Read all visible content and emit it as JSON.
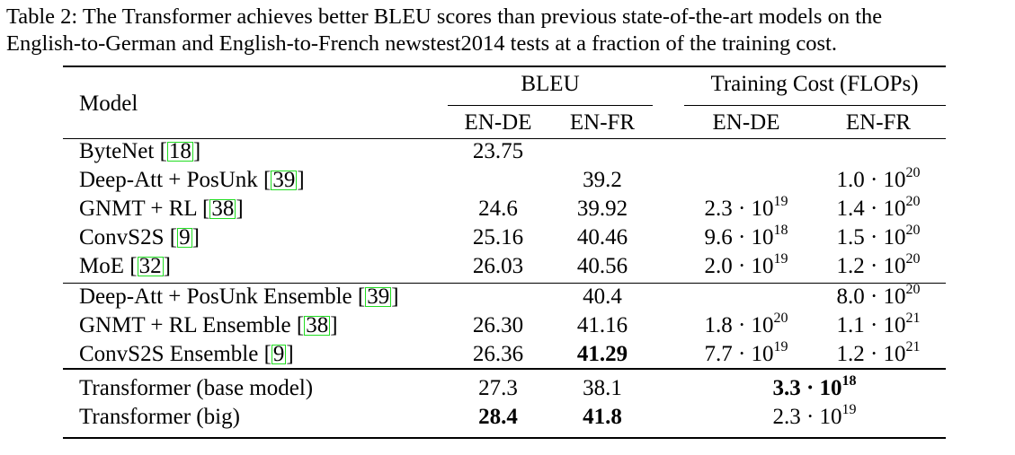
{
  "caption": {
    "line1": "Table 2: The Transformer achieves better BLEU scores than previous state-of-the-art models on the",
    "line2": "English-to-German and English-to-French newstest2014 tests at a fraction of the training cost."
  },
  "headers": {
    "model": "Model",
    "bleu": "BLEU",
    "cost": "Training Cost (FLOPs)",
    "en_de": "EN-DE",
    "en_fr": "EN-FR"
  },
  "rows": [
    {
      "name": "ByteNet [",
      "cite": "18",
      "close": "]",
      "bleu_de": "23.75",
      "bleu_fr": "",
      "cost_de": "",
      "cost_de_exp": "",
      "cost_fr": "",
      "cost_fr_exp": ""
    },
    {
      "name": "Deep-Att + PosUnk [",
      "cite": "39",
      "close": "]",
      "bleu_de": "",
      "bleu_fr": "39.2",
      "cost_de": "",
      "cost_de_exp": "",
      "cost_fr": "1.0 · 10",
      "cost_fr_exp": "20"
    },
    {
      "name": "GNMT + RL [",
      "cite": "38",
      "close": "]",
      "bleu_de": "24.6",
      "bleu_fr": "39.92",
      "cost_de": "2.3 · 10",
      "cost_de_exp": "19",
      "cost_fr": "1.4 · 10",
      "cost_fr_exp": "20"
    },
    {
      "name": "ConvS2S [",
      "cite": "9",
      "close": "]",
      "bleu_de": "25.16",
      "bleu_fr": "40.46",
      "cost_de": "9.6 · 10",
      "cost_de_exp": "18",
      "cost_fr": "1.5 · 10",
      "cost_fr_exp": "20"
    },
    {
      "name": "MoE [",
      "cite": "32",
      "close": "]",
      "bleu_de": "26.03",
      "bleu_fr": "40.56",
      "cost_de": "2.0 · 10",
      "cost_de_exp": "19",
      "cost_fr": "1.2 · 10",
      "cost_fr_exp": "20"
    },
    {
      "name": "Deep-Att + PosUnk Ensemble [",
      "cite": "39",
      "close": "]",
      "bleu_de": "",
      "bleu_fr": "40.4",
      "cost_de": "",
      "cost_de_exp": "",
      "cost_fr": "8.0 · 10",
      "cost_fr_exp": "20"
    },
    {
      "name": "GNMT + RL Ensemble [",
      "cite": "38",
      "close": "]",
      "bleu_de": "26.30",
      "bleu_fr": "41.16",
      "cost_de": "1.8 · 10",
      "cost_de_exp": "20",
      "cost_fr": "1.1 · 10",
      "cost_fr_exp": "21"
    },
    {
      "name": "ConvS2S Ensemble [",
      "cite": "9",
      "close": "]",
      "bleu_de": "26.36",
      "bleu_fr": "41.29",
      "cost_de": "7.7 · 10",
      "cost_de_exp": "19",
      "cost_fr": "1.2 · 10",
      "cost_fr_exp": "21"
    },
    {
      "name": "Transformer (base model)",
      "cite": "",
      "close": "",
      "bleu_de": "27.3",
      "bleu_fr": "38.1",
      "cost_span": "3.3 · 10",
      "cost_span_exp": "18"
    },
    {
      "name": "Transformer (big)",
      "cite": "",
      "close": "",
      "bleu_de": "28.4",
      "bleu_fr": "41.8",
      "cost_span": "2.3 · 10",
      "cost_span_exp": "19"
    }
  ]
}
